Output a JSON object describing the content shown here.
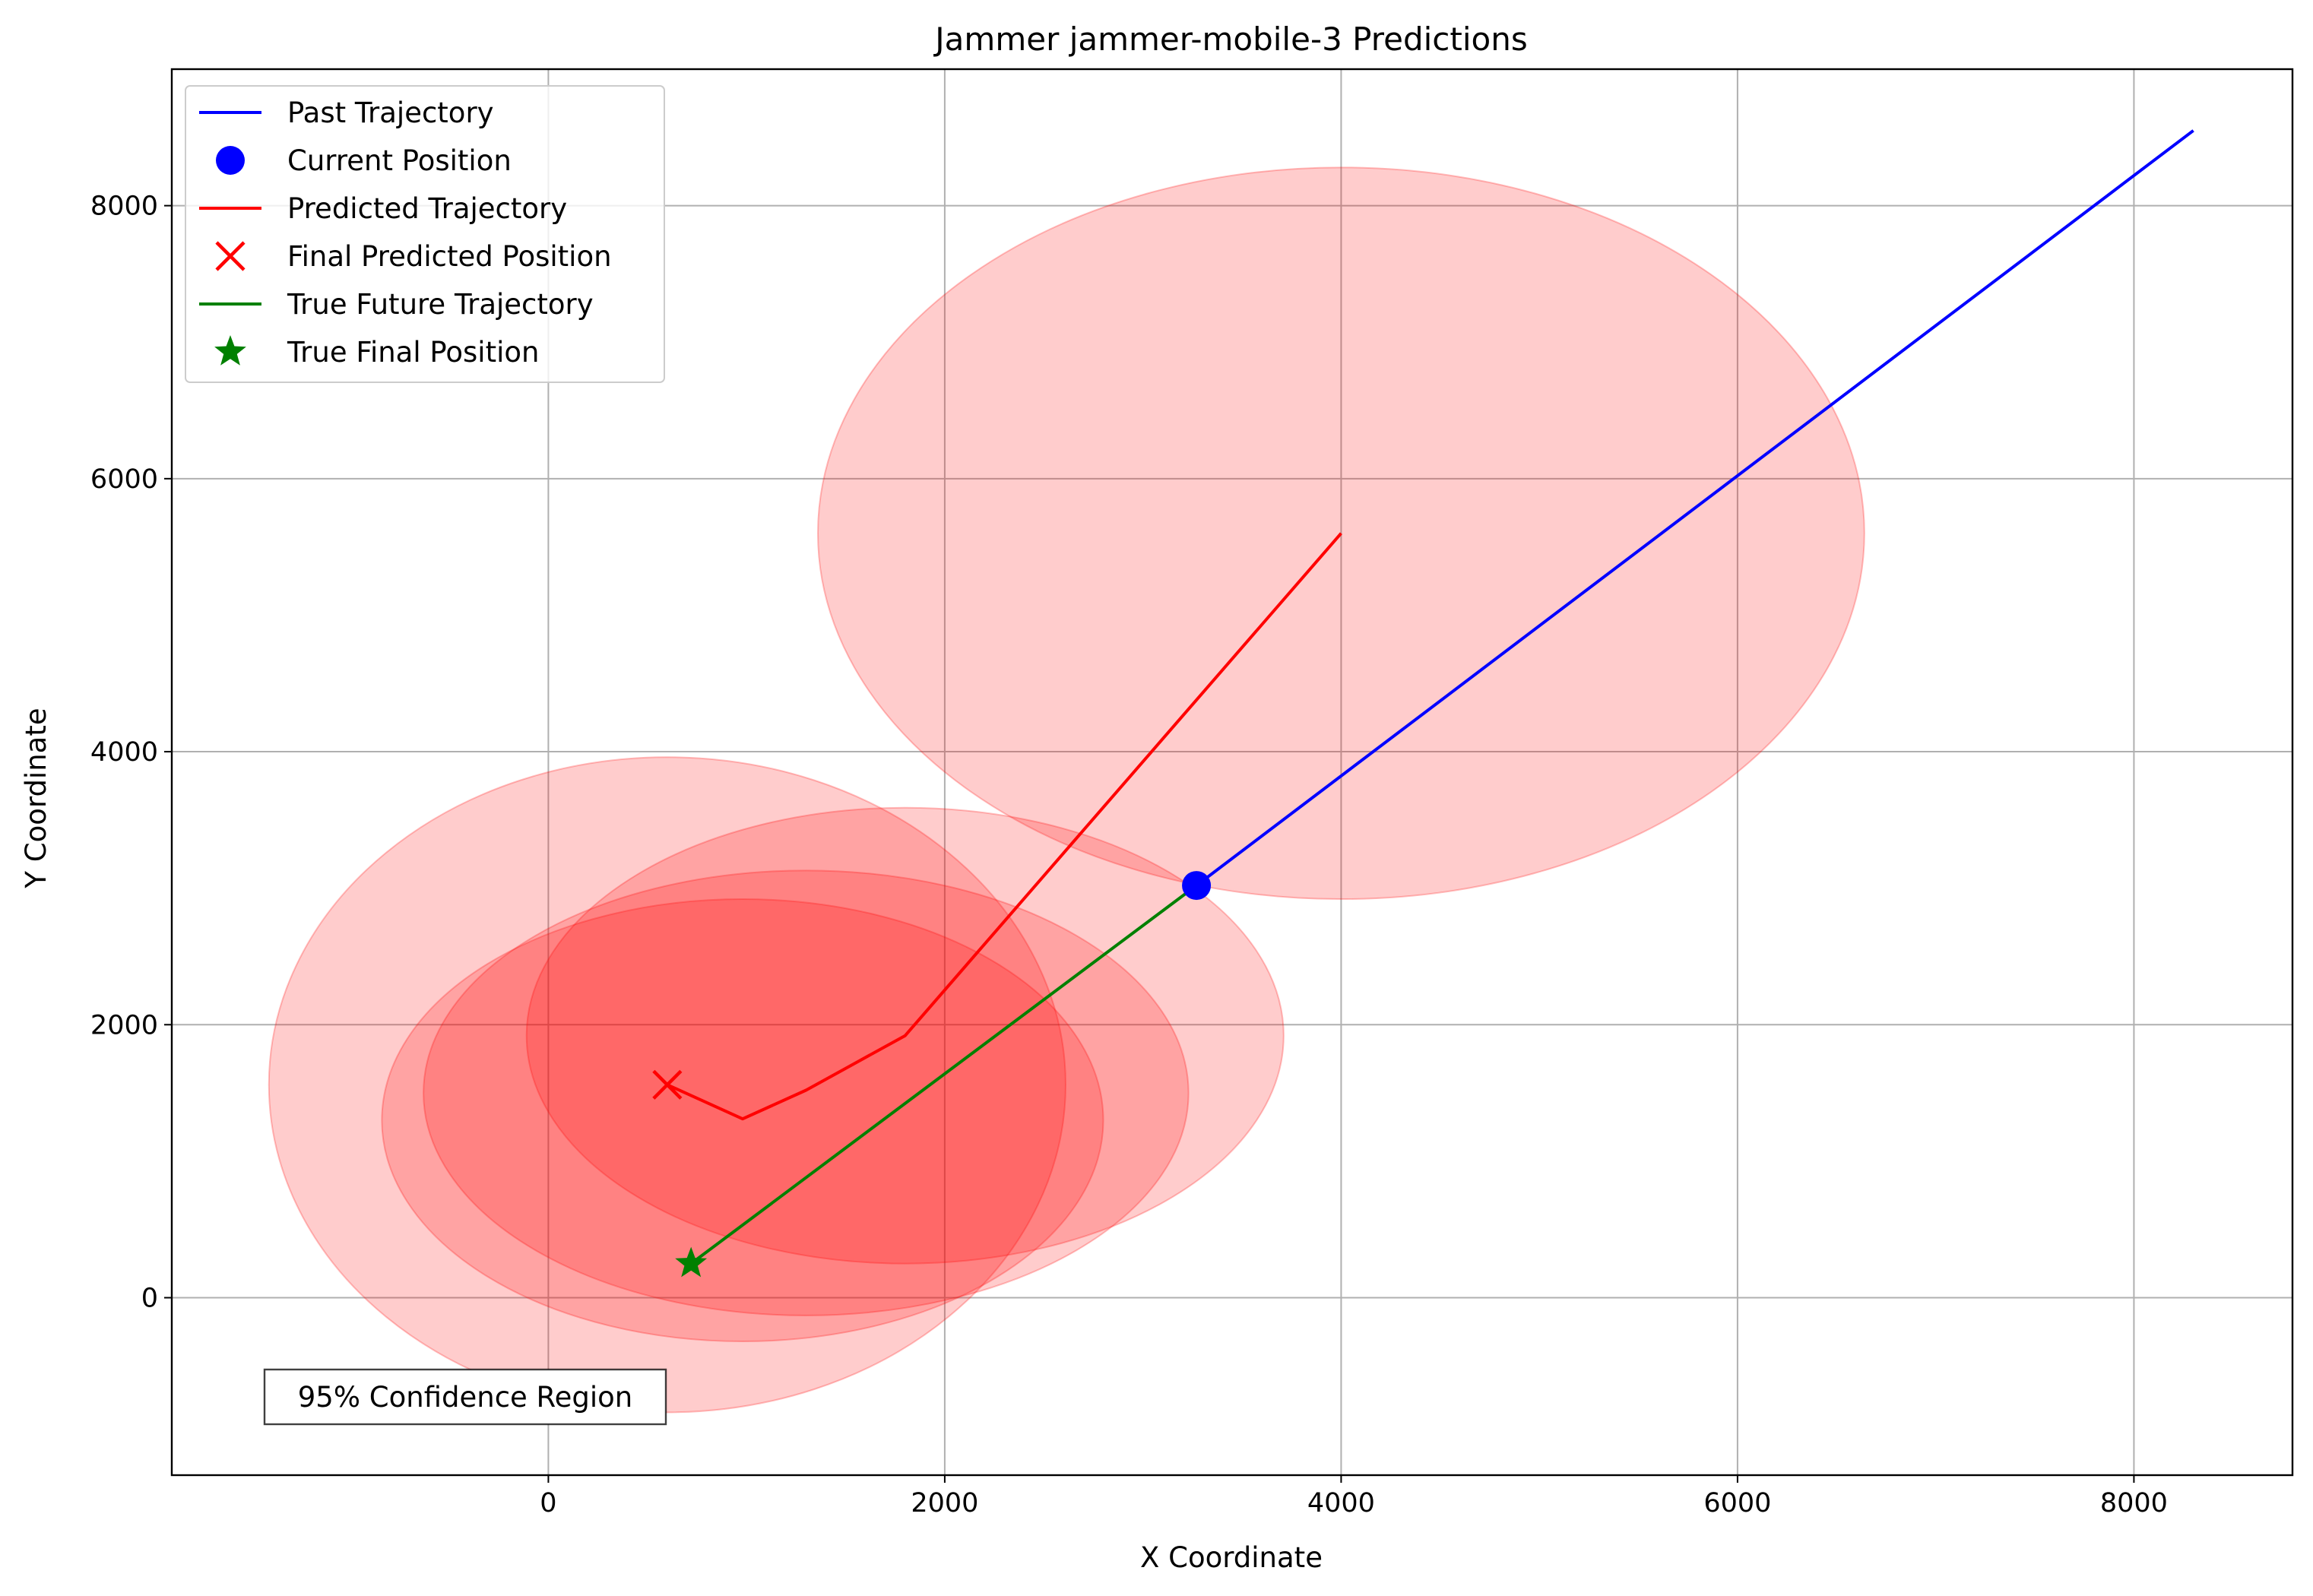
{
  "chart_data": {
    "type": "line",
    "title": "Jammer jammer-mobile-3 Predictions",
    "xlabel": "X Coordinate",
    "ylabel": "Y Coordinate",
    "xlim": [
      -1900,
      8800
    ],
    "ylim": [
      -1300,
      9000
    ],
    "xticks": [
      0,
      2000,
      4000,
      6000,
      8000
    ],
    "yticks": [
      0,
      2000,
      4000,
      6000,
      8000
    ],
    "xtick_labels": [
      "0",
      "2000",
      "4000",
      "6000",
      "8000"
    ],
    "ytick_labels": [
      "0",
      "2000",
      "4000",
      "6000",
      "8000"
    ],
    "grid": true,
    "legend_position": "upper left",
    "annotation": "95% Confidence Region",
    "series": [
      {
        "name": "Past Trajectory",
        "kind": "line",
        "color": "#0000ff",
        "x": [
          8300,
          3270
        ],
        "y": [
          8550,
          3020
        ]
      },
      {
        "name": "Current Position",
        "kind": "marker-circle",
        "color": "#0000ff",
        "x": [
          3270
        ],
        "y": [
          3020
        ]
      },
      {
        "name": "Predicted Trajectory",
        "kind": "line",
        "color": "#ff0000",
        "x": [
          4000,
          1800,
          1300,
          980,
          600
        ],
        "y": [
          5600,
          1920,
          1520,
          1310,
          1560
        ]
      },
      {
        "name": "Final Predicted Position",
        "kind": "marker-x",
        "color": "#ff0000",
        "x": [
          600
        ],
        "y": [
          1560
        ]
      },
      {
        "name": "True Future Trajectory",
        "kind": "line",
        "color": "#008000",
        "x": [
          3270,
          720
        ],
        "y": [
          3020,
          250
        ]
      },
      {
        "name": "True Final Position",
        "kind": "marker-star",
        "color": "#008000",
        "x": [
          720
        ],
        "y": [
          250
        ]
      }
    ],
    "confidence_ellipses": [
      {
        "cx": 4000,
        "cy": 5600,
        "rx": 2640,
        "ry": 2680
      },
      {
        "cx": 1800,
        "cy": 1920,
        "rx": 1910,
        "ry": 1670
      },
      {
        "cx": 1300,
        "cy": 1500,
        "rx": 1930,
        "ry": 1630
      },
      {
        "cx": 980,
        "cy": 1300,
        "rx": 1820,
        "ry": 1620
      },
      {
        "cx": 600,
        "cy": 1560,
        "rx": 2010,
        "ry": 2400
      }
    ],
    "ellipse_color": "#ff0000",
    "ellipse_opacity": 0.2
  }
}
